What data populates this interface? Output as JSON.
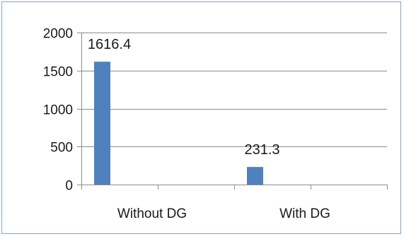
{
  "chart_data": {
    "type": "bar",
    "categories": [
      "Without DG",
      "With DG"
    ],
    "values": [
      1616.4,
      231.3
    ],
    "data_labels": [
      "1616.4",
      "231.3"
    ],
    "y_ticks": [
      0,
      500,
      1000,
      1500,
      2000
    ],
    "y_tick_labels": [
      "0",
      "500",
      "1000",
      "1500",
      "2000"
    ],
    "ylim": [
      0,
      2000
    ],
    "grid": true,
    "legend": "none",
    "bar_color": "#4f81bd",
    "grid_color": "#8c8c8c",
    "border_color": "#86a2c6"
  }
}
